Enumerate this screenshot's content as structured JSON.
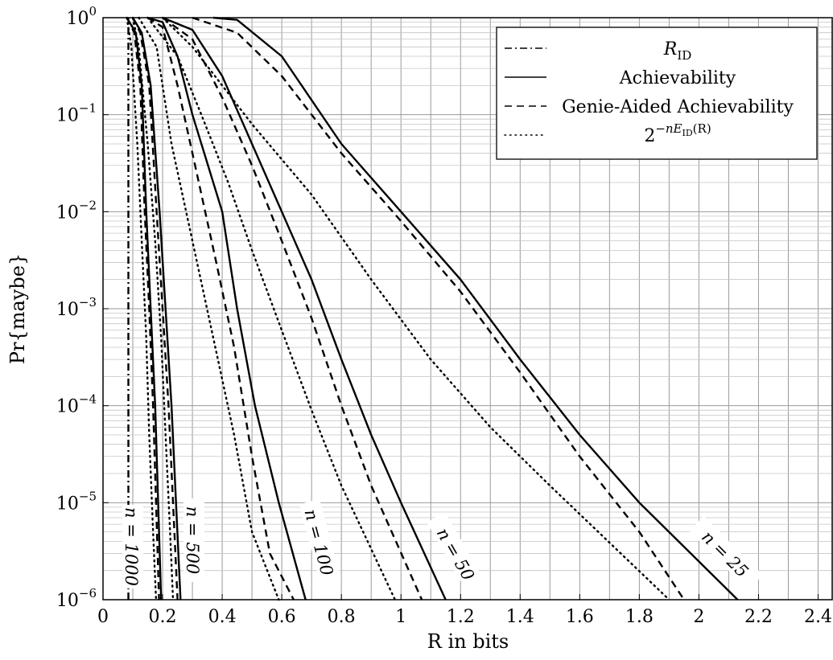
{
  "chart_data": {
    "type": "line",
    "xlabel": "R in bits",
    "ylabel": "Pr{maybe}",
    "xlim": [
      0,
      2.45
    ],
    "ylim": [
      1e-06,
      1
    ],
    "yscale": "log",
    "grid": "major and minor",
    "legend_position": "top-right",
    "x_ticks": [
      "0",
      "0.2",
      "0.4",
      "0.6",
      "0.8",
      "1",
      "1.2",
      "1.4",
      "1.6",
      "1.8",
      "2",
      "2.2",
      "2.4"
    ],
    "y_ticks": [
      {
        "base": "10",
        "exp": "0"
      },
      {
        "base": "10",
        "exp": "−1"
      },
      {
        "base": "10",
        "exp": "−2"
      },
      {
        "base": "10",
        "exp": "−3"
      },
      {
        "base": "10",
        "exp": "−4"
      },
      {
        "base": "10",
        "exp": "−5"
      },
      {
        "base": "10",
        "exp": "−6"
      }
    ],
    "legend": [
      {
        "style": "dashdot",
        "label": "R",
        "sub": "ID"
      },
      {
        "style": "solid",
        "label": "Achievability"
      },
      {
        "style": "dashed",
        "label": "Genie-Aided Achievability"
      },
      {
        "style": "dotted",
        "label": "2",
        "sup": "−nE",
        "supsub": "ID",
        "suptail": "(R)"
      }
    ],
    "curve_labels": [
      {
        "text": "n = 1000"
      },
      {
        "text": "n = 500"
      },
      {
        "text": "n = 100"
      },
      {
        "text": "n = 50"
      },
      {
        "text": "n = 25"
      }
    ],
    "series": [
      {
        "n": 1000,
        "style": "dashdot",
        "points": [
          [
            0.085,
            1e-06
          ],
          [
            0.085,
            1
          ]
        ]
      },
      {
        "n": 1000,
        "style": "solid",
        "points": [
          [
            0.08,
            1
          ],
          [
            0.11,
            0.7
          ],
          [
            0.13,
            0.2
          ],
          [
            0.145,
            0.01
          ],
          [
            0.16,
            0.001
          ],
          [
            0.175,
            0.0001
          ],
          [
            0.185,
            1e-05
          ],
          [
            0.195,
            1e-06
          ]
        ]
      },
      {
        "n": 1000,
        "style": "dashed",
        "points": [
          [
            0.08,
            1
          ],
          [
            0.105,
            0.7
          ],
          [
            0.125,
            0.2
          ],
          [
            0.14,
            0.01
          ],
          [
            0.155,
            0.001
          ],
          [
            0.168,
            0.0001
          ],
          [
            0.178,
            1e-05
          ],
          [
            0.188,
            1e-06
          ]
        ]
      },
      {
        "n": 1000,
        "style": "dotted",
        "points": [
          [
            0.08,
            1
          ],
          [
            0.095,
            0.5
          ],
          [
            0.115,
            0.05
          ],
          [
            0.13,
            0.005
          ],
          [
            0.145,
            0.0005
          ],
          [
            0.155,
            5e-05
          ],
          [
            0.168,
            5e-06
          ],
          [
            0.178,
            1e-06
          ]
        ]
      },
      {
        "n": 500,
        "style": "solid",
        "points": [
          [
            0.1,
            1
          ],
          [
            0.13,
            0.7
          ],
          [
            0.16,
            0.2
          ],
          [
            0.19,
            0.01
          ],
          [
            0.21,
            0.001
          ],
          [
            0.23,
            0.0001
          ],
          [
            0.245,
            1e-05
          ],
          [
            0.26,
            1e-06
          ]
        ]
      },
      {
        "n": 500,
        "style": "dashed",
        "points": [
          [
            0.1,
            1
          ],
          [
            0.125,
            0.7
          ],
          [
            0.155,
            0.2
          ],
          [
            0.18,
            0.01
          ],
          [
            0.2,
            0.001
          ],
          [
            0.22,
            0.0001
          ],
          [
            0.235,
            1e-05
          ],
          [
            0.25,
            1e-06
          ]
        ]
      },
      {
        "n": 500,
        "style": "dotted",
        "points": [
          [
            0.1,
            1
          ],
          [
            0.12,
            0.5
          ],
          [
            0.15,
            0.05
          ],
          [
            0.175,
            0.005
          ],
          [
            0.195,
            0.0005
          ],
          [
            0.21,
            5e-05
          ],
          [
            0.225,
            5e-06
          ],
          [
            0.235,
            1e-06
          ]
        ]
      },
      {
        "n": 100,
        "style": "solid",
        "points": [
          [
            0.15,
            1
          ],
          [
            0.2,
            0.9
          ],
          [
            0.25,
            0.4
          ],
          [
            0.3,
            0.1
          ],
          [
            0.4,
            0.01
          ],
          [
            0.45,
            0.001
          ],
          [
            0.51,
            0.0001
          ],
          [
            0.59,
            1e-05
          ],
          [
            0.68,
            1e-06
          ]
        ]
      },
      {
        "n": 100,
        "style": "dashed",
        "points": [
          [
            0.15,
            1
          ],
          [
            0.2,
            0.8
          ],
          [
            0.25,
            0.2
          ],
          [
            0.3,
            0.04
          ],
          [
            0.38,
            0.003
          ],
          [
            0.44,
            0.0004
          ],
          [
            0.5,
            3e-05
          ],
          [
            0.56,
            3e-06
          ],
          [
            0.64,
            1e-06
          ]
        ]
      },
      {
        "n": 100,
        "style": "dotted",
        "points": [
          [
            0.12,
            1
          ],
          [
            0.18,
            0.5
          ],
          [
            0.23,
            0.05
          ],
          [
            0.3,
            0.005
          ],
          [
            0.37,
            0.0005
          ],
          [
            0.44,
            5e-05
          ],
          [
            0.5,
            5e-06
          ],
          [
            0.59,
            1e-06
          ]
        ]
      },
      {
        "n": 50,
        "style": "solid",
        "points": [
          [
            0.2,
            1
          ],
          [
            0.3,
            0.75
          ],
          [
            0.4,
            0.25
          ],
          [
            0.5,
            0.05
          ],
          [
            0.6,
            0.01
          ],
          [
            0.7,
            0.002
          ],
          [
            0.8,
            0.0003
          ],
          [
            0.9,
            5e-05
          ],
          [
            1.0,
            1e-05
          ],
          [
            1.15,
            1e-06
          ]
        ]
      },
      {
        "n": 50,
        "style": "dashed",
        "points": [
          [
            0.2,
            1
          ],
          [
            0.3,
            0.6
          ],
          [
            0.4,
            0.15
          ],
          [
            0.5,
            0.03
          ],
          [
            0.6,
            0.005
          ],
          [
            0.7,
            0.0008
          ],
          [
            0.8,
            0.0001
          ],
          [
            0.9,
            1.5e-05
          ],
          [
            1.07,
            1e-06
          ]
        ]
      },
      {
        "n": 50,
        "style": "dotted",
        "points": [
          [
            0.15,
            1
          ],
          [
            0.25,
            0.4
          ],
          [
            0.33,
            0.1
          ],
          [
            0.42,
            0.02
          ],
          [
            0.5,
            0.004
          ],
          [
            0.6,
            0.0006
          ],
          [
            0.7,
            9e-05
          ],
          [
            0.8,
            1.5e-05
          ],
          [
            0.98,
            1e-06
          ]
        ]
      },
      {
        "n": 25,
        "style": "solid",
        "points": [
          [
            0.37,
            1
          ],
          [
            0.45,
            0.95
          ],
          [
            0.6,
            0.4
          ],
          [
            0.8,
            0.05
          ],
          [
            1.0,
            0.01
          ],
          [
            1.2,
            0.002
          ],
          [
            1.4,
            0.0003
          ],
          [
            1.6,
            5e-05
          ],
          [
            1.8,
            1e-05
          ],
          [
            2.13,
            1e-06
          ]
        ]
      },
      {
        "n": 25,
        "style": "dashed",
        "points": [
          [
            0.3,
            1
          ],
          [
            0.45,
            0.7
          ],
          [
            0.6,
            0.25
          ],
          [
            0.8,
            0.04
          ],
          [
            1.0,
            0.008
          ],
          [
            1.2,
            0.0015
          ],
          [
            1.4,
            0.00022
          ],
          [
            1.6,
            3e-05
          ],
          [
            1.8,
            5e-06
          ],
          [
            1.95,
            1e-06
          ]
        ]
      },
      {
        "n": 25,
        "style": "dotted",
        "points": [
          [
            0.2,
            1
          ],
          [
            0.3,
            0.5
          ],
          [
            0.5,
            0.08
          ],
          [
            0.7,
            0.015
          ],
          [
            0.9,
            0.002
          ],
          [
            1.1,
            0.0003
          ],
          [
            1.3,
            6e-05
          ],
          [
            1.5,
            1.5e-05
          ],
          [
            1.9,
            1e-06
          ]
        ]
      }
    ]
  }
}
